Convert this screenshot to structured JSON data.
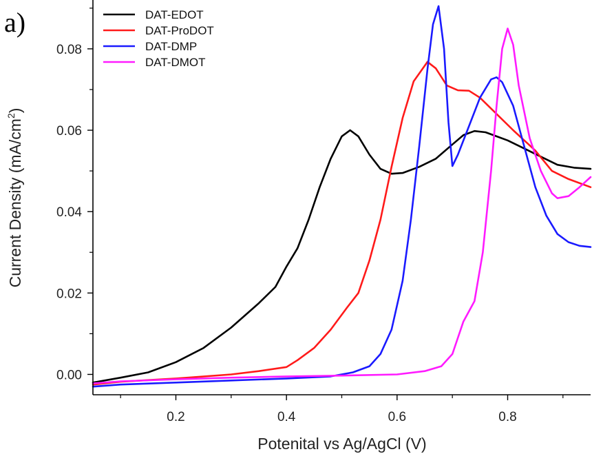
{
  "panel_label": "a)",
  "chart_data": {
    "type": "line",
    "title": "",
    "xlabel": "Potenital vs Ag/AgCl (V)",
    "ylabel": "Current Density (mA/cm",
    "ylabel_sup": "2",
    "ylabel_close": ")",
    "xlim": [
      0.05,
      0.95
    ],
    "ylim": [
      -0.005,
      0.092
    ],
    "x_ticks": [
      0.2,
      0.4,
      0.6,
      0.8
    ],
    "x_tick_labels": [
      "0.2",
      "0.4",
      "0.6",
      "0.8"
    ],
    "x_minor_ticks": [
      0.1,
      0.3,
      0.5,
      0.7,
      0.9
    ],
    "y_ticks": [
      0.0,
      0.02,
      0.04,
      0.06,
      0.08
    ],
    "y_tick_labels": [
      "0.00",
      "0.02",
      "0.04",
      "0.06",
      "0.08"
    ],
    "y_minor_ticks": [
      0.01,
      0.03,
      0.05,
      0.07,
      0.09
    ],
    "grid": false,
    "legend_position": "top-left",
    "series": [
      {
        "name": "DAT-EDOT",
        "color": "#000000",
        "points": [
          [
            0.05,
            -0.002
          ],
          [
            0.1,
            -0.0008
          ],
          [
            0.15,
            0.0005
          ],
          [
            0.2,
            0.003
          ],
          [
            0.25,
            0.0065
          ],
          [
            0.3,
            0.0115
          ],
          [
            0.35,
            0.0175
          ],
          [
            0.38,
            0.0215
          ],
          [
            0.4,
            0.0265
          ],
          [
            0.42,
            0.031
          ],
          [
            0.44,
            0.038
          ],
          [
            0.46,
            0.046
          ],
          [
            0.48,
            0.053
          ],
          [
            0.5,
            0.0585
          ],
          [
            0.515,
            0.06
          ],
          [
            0.53,
            0.0585
          ],
          [
            0.55,
            0.054
          ],
          [
            0.57,
            0.0505
          ],
          [
            0.59,
            0.0493
          ],
          [
            0.61,
            0.0495
          ],
          [
            0.64,
            0.051
          ],
          [
            0.67,
            0.053
          ],
          [
            0.7,
            0.0565
          ],
          [
            0.72,
            0.0588
          ],
          [
            0.74,
            0.0598
          ],
          [
            0.76,
            0.0595
          ],
          [
            0.78,
            0.0585
          ],
          [
            0.8,
            0.0575
          ],
          [
            0.83,
            0.0555
          ],
          [
            0.86,
            0.0535
          ],
          [
            0.89,
            0.0515
          ],
          [
            0.92,
            0.0508
          ],
          [
            0.95,
            0.0505
          ]
        ]
      },
      {
        "name": "DAT-ProDOT",
        "color": "#ff1a1a",
        "points": [
          [
            0.05,
            -0.0025
          ],
          [
            0.1,
            -0.0018
          ],
          [
            0.2,
            -0.001
          ],
          [
            0.3,
            0.0
          ],
          [
            0.35,
            0.0008
          ],
          [
            0.4,
            0.0018
          ],
          [
            0.42,
            0.0035
          ],
          [
            0.45,
            0.0065
          ],
          [
            0.48,
            0.011
          ],
          [
            0.51,
            0.0165
          ],
          [
            0.53,
            0.02
          ],
          [
            0.55,
            0.028
          ],
          [
            0.57,
            0.038
          ],
          [
            0.59,
            0.051
          ],
          [
            0.61,
            0.063
          ],
          [
            0.63,
            0.072
          ],
          [
            0.655,
            0.0768
          ],
          [
            0.67,
            0.0752
          ],
          [
            0.69,
            0.071
          ],
          [
            0.71,
            0.0698
          ],
          [
            0.73,
            0.0697
          ],
          [
            0.75,
            0.068
          ],
          [
            0.78,
            0.064
          ],
          [
            0.81,
            0.06
          ],
          [
            0.85,
            0.055
          ],
          [
            0.88,
            0.05
          ],
          [
            0.91,
            0.048
          ],
          [
            0.95,
            0.046
          ]
        ]
      },
      {
        "name": "DAT-DMP",
        "color": "#1a1aff",
        "points": [
          [
            0.05,
            -0.003
          ],
          [
            0.1,
            -0.0025
          ],
          [
            0.2,
            -0.002
          ],
          [
            0.3,
            -0.0015
          ],
          [
            0.4,
            -0.001
          ],
          [
            0.48,
            -0.0005
          ],
          [
            0.52,
            0.0005
          ],
          [
            0.55,
            0.002
          ],
          [
            0.57,
            0.005
          ],
          [
            0.59,
            0.011
          ],
          [
            0.61,
            0.023
          ],
          [
            0.625,
            0.038
          ],
          [
            0.64,
            0.056
          ],
          [
            0.655,
            0.075
          ],
          [
            0.665,
            0.086
          ],
          [
            0.675,
            0.0905
          ],
          [
            0.685,
            0.08
          ],
          [
            0.693,
            0.062
          ],
          [
            0.7,
            0.0512
          ],
          [
            0.71,
            0.054
          ],
          [
            0.73,
            0.061
          ],
          [
            0.75,
            0.068
          ],
          [
            0.77,
            0.0725
          ],
          [
            0.78,
            0.073
          ],
          [
            0.79,
            0.0718
          ],
          [
            0.81,
            0.066
          ],
          [
            0.83,
            0.056
          ],
          [
            0.85,
            0.046
          ],
          [
            0.87,
            0.039
          ],
          [
            0.89,
            0.0345
          ],
          [
            0.91,
            0.0325
          ],
          [
            0.93,
            0.0316
          ],
          [
            0.95,
            0.0313
          ]
        ]
      },
      {
        "name": "DAT-DMOT",
        "color": "#ff1aff",
        "points": [
          [
            0.05,
            -0.0022
          ],
          [
            0.1,
            -0.0017
          ],
          [
            0.2,
            -0.0012
          ],
          [
            0.3,
            -0.0008
          ],
          [
            0.4,
            -0.0005
          ],
          [
            0.5,
            -0.0003
          ],
          [
            0.6,
            0.0
          ],
          [
            0.65,
            0.0008
          ],
          [
            0.68,
            0.002
          ],
          [
            0.7,
            0.005
          ],
          [
            0.72,
            0.013
          ],
          [
            0.74,
            0.018
          ],
          [
            0.755,
            0.03
          ],
          [
            0.77,
            0.05
          ],
          [
            0.78,
            0.066
          ],
          [
            0.79,
            0.08
          ],
          [
            0.8,
            0.085
          ],
          [
            0.81,
            0.081
          ],
          [
            0.82,
            0.071
          ],
          [
            0.84,
            0.058
          ],
          [
            0.86,
            0.05
          ],
          [
            0.88,
            0.0445
          ],
          [
            0.89,
            0.0433
          ],
          [
            0.91,
            0.0438
          ],
          [
            0.93,
            0.046
          ],
          [
            0.95,
            0.0485
          ]
        ]
      }
    ]
  }
}
